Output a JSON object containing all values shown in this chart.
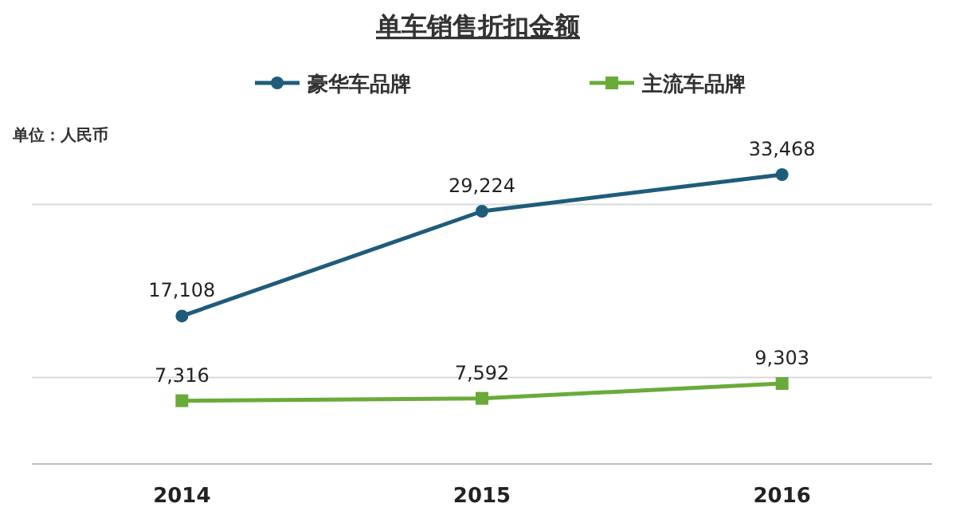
{
  "chart_data": {
    "type": "line",
    "title": "单车销售折扣金额",
    "categories": [
      "2014",
      "2015",
      "2016"
    ],
    "series": [
      {
        "name": "豪华车品牌",
        "color": "#1f5c7a",
        "values": [
          17108,
          29224,
          33468
        ],
        "value_labels": [
          "17,108",
          "29,224",
          "33,468"
        ],
        "marker": "circle"
      },
      {
        "name": "主流车品牌",
        "color": "#6aaa3a",
        "values": [
          7316,
          7592,
          9303
        ],
        "value_labels": [
          "7,316",
          "7,592",
          "9,303"
        ],
        "marker": "square"
      }
    ],
    "ref_lines": [
      {
        "axis": "y",
        "value": 10000,
        "color": "#d9d9d9"
      },
      {
        "axis": "y",
        "value": 30000,
        "color": "#d9d9d9"
      }
    ],
    "tick_labels": "x",
    "legend": "top",
    "annotations": [
      "单位：人民币"
    ]
  }
}
